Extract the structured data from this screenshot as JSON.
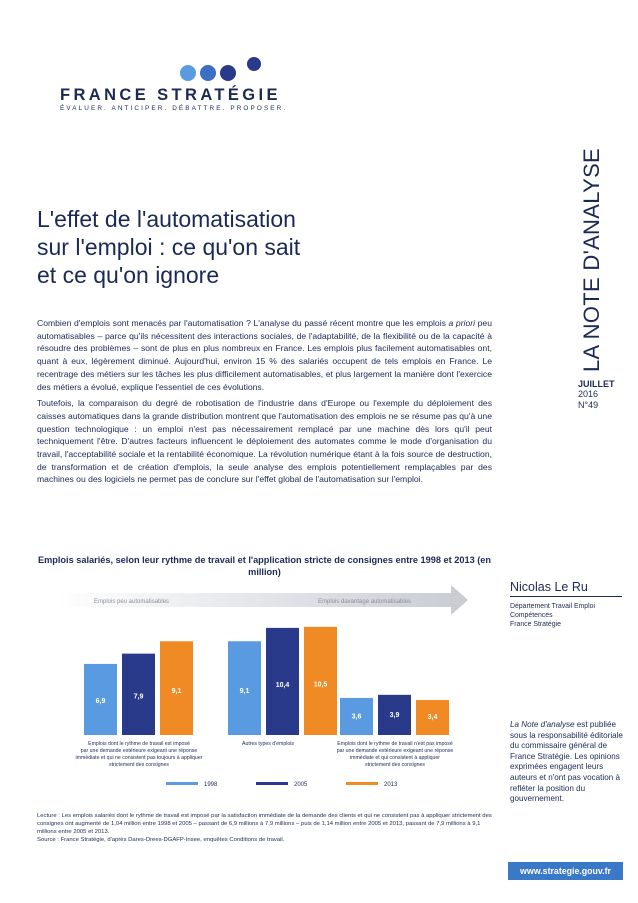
{
  "brand": {
    "name": "FRANCE STRATÉGIE",
    "tagline": "ÉVALUER. ANTICIPER. DÉBATTRE. PROPOSER.",
    "colors": {
      "dark_blue": "#2a3a8a",
      "mid_blue": "#3a6fc4",
      "light_blue": "#5a9ae0",
      "navy": "#1b2a55"
    }
  },
  "series_label": "LA NOTE D'ANALYSE",
  "issue": {
    "month": "JUILLET",
    "year": "2016",
    "number": "N°49"
  },
  "title": [
    "L'effet de l'automatisation",
    "sur l'emploi : ce qu'on sait",
    "et ce qu'on ignore"
  ],
  "intro": {
    "p1_before": "Combien d'emplois sont menacés par l'automatisation ? L'analyse du passé récent montre que les emplois ",
    "p1_em": "a priori",
    "p1_after": " peu automatisables – parce qu'ils nécessitent des interactions sociales, de l'adaptabilité, de la flexibilité ou de la capacité à résoudre des problèmes – sont de plus en plus nombreux en France. Les emplois plus facilement automatisables ont, quant à eux, légèrement diminué. Aujourd'hui, environ 15 % des salariés occupent de tels emplois en France. Le recentrage des métiers sur les tâches les plus difficilement automatisables, et plus largement la manière dont l'exercice des métiers a évolué, explique l'essentiel de ces évolutions.",
    "p2": "Toutefois, la comparaison du degré de robotisation de l'industrie dans d'Europe ou l'exemple du déploiement des caisses automatiques dans la grande distribution montrent que l'automatisation des emplois ne se résume pas qu'à une question technologique : un emploi n'est pas nécessairement remplacé par une machine dès lors qu'il peut techniquement l'être. D'autres facteurs influencent le déploiement des automates comme le mode d'organisation du travail, l'acceptabilité sociale et la rentabilité économique. La révolution numérique étant à la fois source de destruction, de transformation et de création d'emplois, la seule analyse des emplois potentiellement remplaçables par des machines ou des logiciels ne permet pas de conclure sur l'effet global de l'automatisation sur l'emploi."
  },
  "chart_data": {
    "type": "bar",
    "title": "Emplois salariés, selon leur rythme de travail et l'application stricte de consignes entre 1998 et 2013 (en million)",
    "arrow_labels": {
      "left": "Emplois peu automatisables",
      "right": "Emplois davantage automatisables"
    },
    "categories": [
      [
        "Emplois dont le rythme de travail est imposé",
        "par une demande extérieure exigeant une réponse",
        "immédiate et qui ne consistent pas toujours à appliquer",
        "strictement des consignes"
      ],
      [
        "Autres types d'emplois"
      ],
      [
        "Emplois dont le rythme de travail n'est pas imposé",
        "par une demande extérieure exigeant une réponse",
        "immédiate et qui consistent à appliquer",
        "strictement des consignes"
      ]
    ],
    "series": [
      {
        "name": "1998",
        "color": "#5a9ae0",
        "values": [
          6.9,
          9.1,
          3.6
        ],
        "labels": [
          "6,9",
          "9,1",
          "3,6"
        ]
      },
      {
        "name": "2005",
        "color": "#2a3a8a",
        "values": [
          7.9,
          10.4,
          3.9
        ],
        "labels": [
          "7,9",
          "10,4",
          "3,9"
        ]
      },
      {
        "name": "2013",
        "color": "#f08a24",
        "values": [
          9.1,
          10.5,
          3.4
        ],
        "labels": [
          "9,1",
          "10,5",
          "3,4"
        ]
      }
    ],
    "legend_position": "bottom",
    "grid": false
  },
  "chart_note": {
    "lecture": "Lecture : Les emplois salariés dont le rythme de travail est imposé par la satisfaction immédiate de la demande des clients et qui ne consistent pas à appliquer strictement des consignes ont augmenté de 1,04 million entre 1998 et 2005 – passant de 6,9 millions à 7,9 millions – puis de 1,14 million entre 2005 et 2013, passant de 7,9 millions à 9,1 millions entre 2005 et 2013.",
    "source": "Source : France Stratégie, d'après Dares-Drees-DGAFP-Insee, enquêtes Conditions de travail."
  },
  "author": {
    "name": "Nicolas Le Ru",
    "dept": [
      "Département Travail Emploi",
      "Compétences",
      "France Stratégie"
    ]
  },
  "publication_note": {
    "em": "La Note d'analyse",
    "rest": "est publiée sous la responsabilité éditoriale du commissaire général de France Stratégie. Les opinions exprimées engagent leurs auteurs et n'ont pas vocation à refléter la position du gouvernement."
  },
  "footer_url": "www.strategie.gouv.fr"
}
